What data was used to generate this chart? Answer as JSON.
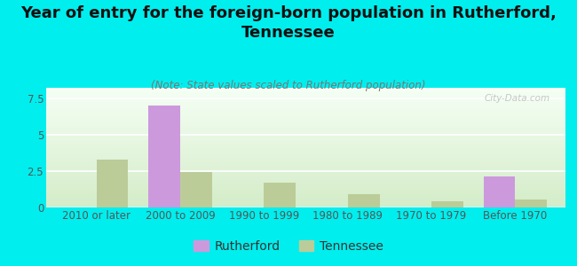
{
  "title": "Year of entry for the foreign-born population in Rutherford,\nTennessee",
  "subtitle": "(Note: State values scaled to Rutherford population)",
  "categories": [
    "2010 or later",
    "2000 to 2009",
    "1990 to 1999",
    "1980 to 1989",
    "1970 to 1979",
    "Before 1970"
  ],
  "rutherford_values": [
    0,
    7.0,
    0,
    0,
    0,
    2.1
  ],
  "tennessee_values": [
    3.3,
    2.4,
    1.7,
    0.9,
    0.45,
    0.55
  ],
  "rutherford_color": "#cc99dd",
  "tennessee_color": "#bbcc99",
  "background_color": "#00eeee",
  "ylim": [
    0,
    8.2
  ],
  "yticks": [
    0,
    2.5,
    5,
    7.5
  ],
  "bar_width": 0.38,
  "legend_rutherford": "Rutherford",
  "legend_tennessee": "Tennessee",
  "watermark": "City-Data.com",
  "title_fontsize": 13,
  "subtitle_fontsize": 8.5,
  "tick_fontsize": 8.5,
  "legend_fontsize": 10
}
